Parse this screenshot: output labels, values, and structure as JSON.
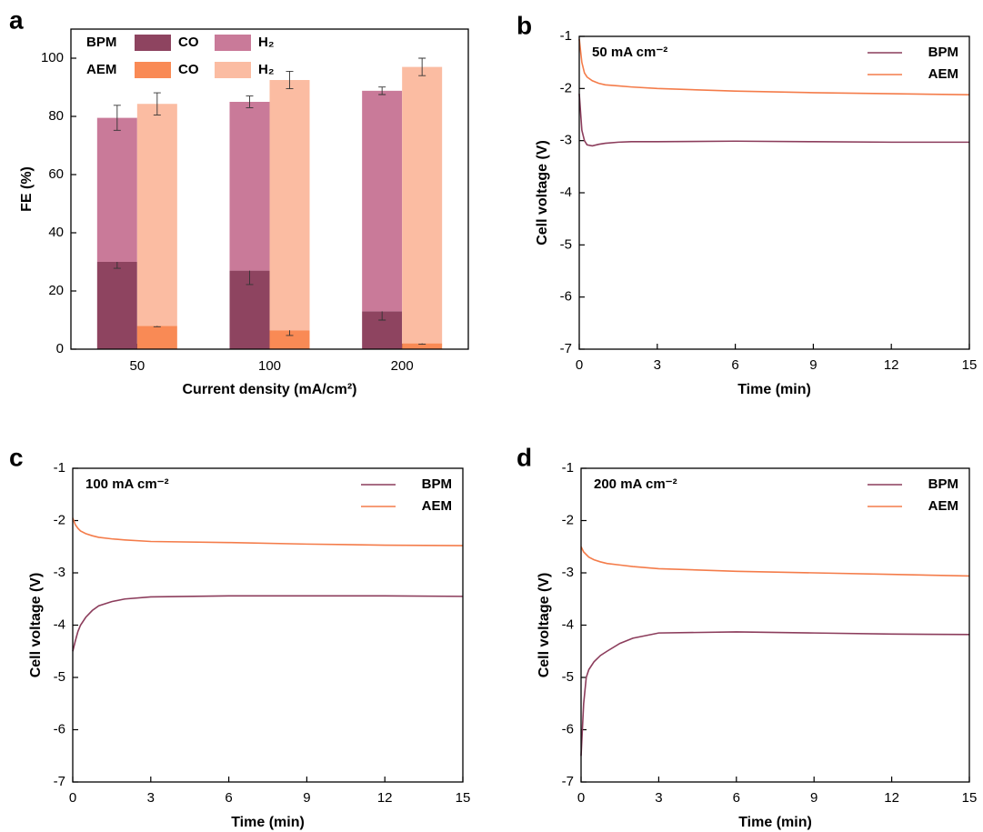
{
  "chart_data": [
    {
      "type": "bar",
      "panel_label": "a",
      "xlabel": "Current density (mA/cm²)",
      "ylabel": "FE (%)",
      "categories": [
        "50",
        "100",
        "200"
      ],
      "ylim": [
        0,
        110
      ],
      "yticks": [
        0,
        20,
        40,
        60,
        80,
        100
      ],
      "legend": "upper left",
      "series": [
        {
          "stack": "BPM",
          "name": "CO",
          "color": "#8e4460",
          "values": [
            30,
            27,
            13
          ],
          "errors": [
            2.2,
            4.8,
            3
          ]
        },
        {
          "stack": "BPM",
          "name": "H₂",
          "color": "#c97a99",
          "values": [
            49.5,
            58,
            75.8
          ],
          "errors": [
            4.3,
            2,
            1.3
          ]
        },
        {
          "stack": "AEM",
          "name": "CO",
          "color": "#f98a55",
          "values": [
            8,
            6.5,
            2
          ],
          "errors": [
            0.3,
            1.8,
            0.3
          ]
        },
        {
          "stack": "AEM",
          "name": "H₂",
          "color": "#fbbca2",
          "values": [
            76.3,
            86,
            95
          ],
          "errors": [
            3.8,
            3,
            3
          ]
        }
      ]
    },
    {
      "type": "line",
      "panel_label": "b",
      "annotation": "50 mA cm⁻²",
      "xlabel": "Time (min)",
      "ylabel": "Cell voltage (V)",
      "xlim": [
        0,
        15
      ],
      "xticks": [
        0,
        3,
        6,
        9,
        12,
        15
      ],
      "ylim": [
        -7,
        -1
      ],
      "yticks": [
        -7,
        -6,
        -5,
        -4,
        -3,
        -2,
        -1
      ],
      "legend": "upper right",
      "x": [
        0,
        0.1,
        0.2,
        0.3,
        0.5,
        0.75,
        1,
        1.5,
        2,
        3,
        6,
        9,
        12,
        15
      ],
      "series": [
        {
          "name": "BPM",
          "color": "#8c3d5c",
          "values": [
            -2.1,
            -2.8,
            -3.0,
            -3.08,
            -3.1,
            -3.07,
            -3.05,
            -3.03,
            -3.02,
            -3.02,
            -3.01,
            -3.02,
            -3.03,
            -3.03
          ]
        },
        {
          "name": "AEM",
          "color": "#f47c4a",
          "values": [
            -1.05,
            -1.5,
            -1.7,
            -1.78,
            -1.85,
            -1.9,
            -1.93,
            -1.95,
            -1.97,
            -2.0,
            -2.05,
            -2.08,
            -2.1,
            -2.12
          ]
        }
      ]
    },
    {
      "type": "line",
      "panel_label": "c",
      "annotation": "100 mA cm⁻²",
      "xlabel": "Time (min)",
      "ylabel": "Cell voltage (V)",
      "xlim": [
        0,
        15
      ],
      "xticks": [
        0,
        3,
        6,
        9,
        12,
        15
      ],
      "ylim": [
        -7,
        -1
      ],
      "yticks": [
        -7,
        -6,
        -5,
        -4,
        -3,
        -2,
        -1
      ],
      "legend": "upper right",
      "x": [
        0,
        0.1,
        0.2,
        0.3,
        0.5,
        0.75,
        1,
        1.5,
        2,
        3,
        6,
        9,
        12,
        15
      ],
      "series": [
        {
          "name": "BPM",
          "color": "#8c3d5c",
          "values": [
            -4.5,
            -4.3,
            -4.12,
            -4.0,
            -3.85,
            -3.72,
            -3.63,
            -3.55,
            -3.5,
            -3.46,
            -3.44,
            -3.44,
            -3.44,
            -3.45
          ]
        },
        {
          "name": "AEM",
          "color": "#f47c4a",
          "values": [
            -1.95,
            -2.08,
            -2.15,
            -2.2,
            -2.25,
            -2.29,
            -2.32,
            -2.35,
            -2.37,
            -2.4,
            -2.42,
            -2.45,
            -2.47,
            -2.48
          ]
        }
      ]
    },
    {
      "type": "line",
      "panel_label": "d",
      "annotation": "200 mA cm⁻²",
      "xlabel": "Time (min)",
      "ylabel": "Cell voltage (V)",
      "xlim": [
        0,
        15
      ],
      "xticks": [
        0,
        3,
        6,
        9,
        12,
        15
      ],
      "ylim": [
        -7,
        -1
      ],
      "yticks": [
        -7,
        -6,
        -5,
        -4,
        -3,
        -2,
        -1
      ],
      "legend": "upper right",
      "x": [
        0,
        0.1,
        0.2,
        0.3,
        0.5,
        0.75,
        1,
        1.5,
        2,
        3,
        6,
        9,
        12,
        15
      ],
      "series": [
        {
          "name": "BPM",
          "color": "#8c3d5c",
          "values": [
            -6.5,
            -5.5,
            -5.0,
            -4.85,
            -4.7,
            -4.58,
            -4.5,
            -4.35,
            -4.25,
            -4.15,
            -4.13,
            -4.15,
            -4.17,
            -4.18
          ]
        },
        {
          "name": "AEM",
          "color": "#f47c4a",
          "values": [
            -2.5,
            -2.6,
            -2.65,
            -2.7,
            -2.75,
            -2.79,
            -2.82,
            -2.85,
            -2.88,
            -2.92,
            -2.97,
            -3.0,
            -3.03,
            -3.06
          ]
        }
      ]
    }
  ]
}
